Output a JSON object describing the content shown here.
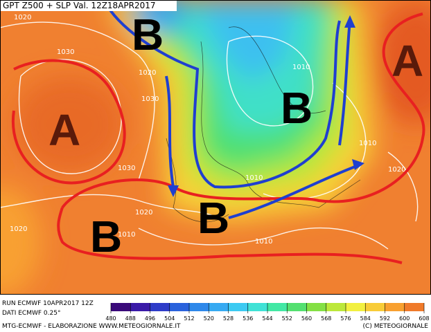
{
  "header": {
    "title": "GPT Z500 + SLP Val. 12Z18APR2017"
  },
  "map": {
    "highs": [
      "A",
      "A"
    ],
    "lows": [
      "B",
      "B",
      "B",
      "B"
    ],
    "isobar_labels": [
      "1020",
      "1030",
      "1020",
      "1030",
      "1030",
      "1020",
      "1020",
      "1010",
      "1010",
      "1010",
      "1020",
      "1010",
      "1010"
    ]
  },
  "colorbar": {
    "ticks": [
      480,
      488,
      496,
      504,
      512,
      520,
      528,
      536,
      544,
      552,
      560,
      568,
      576,
      584,
      592,
      600,
      608
    ],
    "colors": [
      "#3a0a7a",
      "#3a1aa8",
      "#2e3cc8",
      "#2a62dc",
      "#2e88ea",
      "#36aaf2",
      "#3ccaf2",
      "#40e2d6",
      "#42e8a4",
      "#54e070",
      "#84e044",
      "#bce83a",
      "#f2f040",
      "#f8cc38",
      "#f8a030",
      "#f07a2a"
    ]
  },
  "footer": {
    "run": "RUN ECMWF 10APR2017 12Z",
    "data": "DATI ECMWF 0.25°",
    "credits": "MTG-ECMWF - ELABORAZIONE WWW.METEOGIORNALE.IT",
    "copyright": "(C) METEOGIORNALE"
  }
}
